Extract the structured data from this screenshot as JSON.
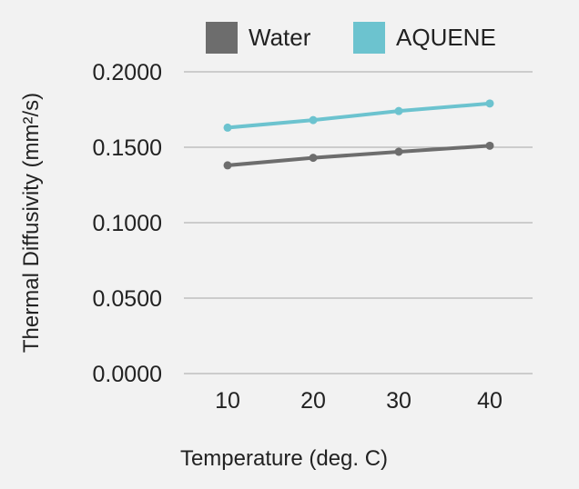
{
  "chart_data": {
    "type": "line",
    "title": "",
    "xlabel": "Temperature (deg. C)",
    "ylabel": "Thermal Diffusivity (mm²/s)",
    "categories": [
      "10",
      "20",
      "30",
      "40"
    ],
    "ylim": [
      0,
      0.2
    ],
    "yticks": [
      "0.0000",
      "0.0500",
      "0.1000",
      "0.1500",
      "0.2000"
    ],
    "grid": true,
    "legend_position": "top",
    "series": [
      {
        "name": "Water",
        "color": "#6d6d6d",
        "values": [
          0.138,
          0.143,
          0.147,
          0.151
        ]
      },
      {
        "name": "AQUENE",
        "color": "#6cc3cf",
        "values": [
          0.163,
          0.168,
          0.174,
          0.179
        ]
      }
    ]
  }
}
